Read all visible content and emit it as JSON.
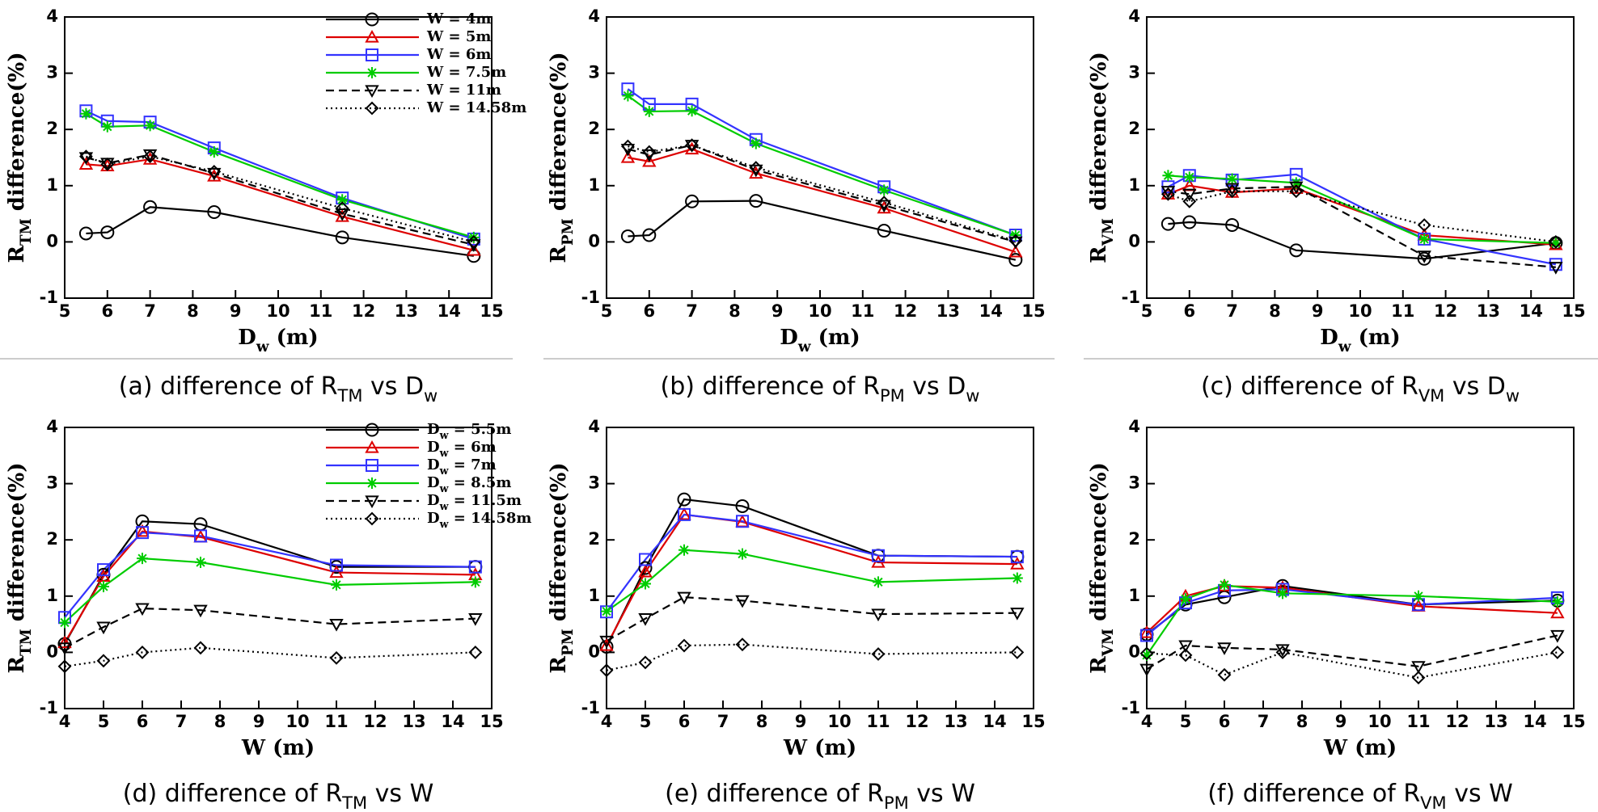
{
  "chart_data": [
    {
      "type": "line",
      "caption": [
        "(a) difference of R",
        "TM",
        " vs D",
        "w"
      ],
      "xlabel": [
        "D",
        "w",
        " (m)"
      ],
      "ylabel": [
        "R",
        "TM",
        " difference(%)"
      ],
      "x": [
        5.5,
        6,
        7,
        8.5,
        11.5,
        14.58
      ],
      "xlim": [
        5,
        15
      ],
      "xticks": [
        5,
        6,
        7,
        8,
        9,
        10,
        11,
        12,
        13,
        14,
        15
      ],
      "ylim": [
        -1,
        4
      ],
      "yticks": [
        -1,
        0,
        1,
        2,
        3,
        4
      ],
      "legend": "upper right",
      "series": [
        {
          "name": "W = 4m",
          "color": "#000000",
          "marker": "circle",
          "dash": "solid",
          "values": [
            0.15,
            0.17,
            0.62,
            0.53,
            0.08,
            -0.25
          ]
        },
        {
          "name": "W = 5m",
          "color": "#dd0000",
          "marker": "triangle",
          "dash": "solid",
          "values": [
            1.38,
            1.35,
            1.47,
            1.17,
            0.45,
            -0.15
          ]
        },
        {
          "name": "W = 6m",
          "color": "#3333ff",
          "marker": "square",
          "dash": "solid",
          "values": [
            2.33,
            2.15,
            2.13,
            1.67,
            0.78,
            0.05
          ]
        },
        {
          "name": "W = 7.5m",
          "color": "#00cc00",
          "marker": "asterisk",
          "dash": "solid",
          "values": [
            2.28,
            2.05,
            2.07,
            1.6,
            0.75,
            0.08
          ]
        },
        {
          "name": "W = 11m",
          "color": "#000000",
          "marker": "down-triangle",
          "dash": "dashed",
          "values": [
            1.5,
            1.4,
            1.55,
            1.22,
            0.5,
            -0.05
          ]
        },
        {
          "name": "W = 14.58m",
          "color": "#000000",
          "marker": "diamond",
          "dash": "dotted",
          "values": [
            1.52,
            1.38,
            1.52,
            1.25,
            0.6,
            0.0
          ]
        }
      ]
    },
    {
      "type": "line",
      "caption": [
        "(b) difference of R",
        "PM",
        " vs D",
        "w"
      ],
      "xlabel": [
        "D",
        "w",
        " (m)"
      ],
      "ylabel": [
        "R",
        "PM",
        " difference(%)"
      ],
      "x": [
        5.5,
        6,
        7,
        8.5,
        11.5,
        14.58
      ],
      "xlim": [
        5,
        15
      ],
      "xticks": [
        5,
        6,
        7,
        8,
        9,
        10,
        11,
        12,
        13,
        14,
        15
      ],
      "ylim": [
        -1,
        4
      ],
      "yticks": [
        -1,
        0,
        1,
        2,
        3,
        4
      ],
      "series": [
        {
          "color": "#000000",
          "marker": "circle",
          "dash": "solid",
          "values": [
            0.1,
            0.12,
            0.72,
            0.73,
            0.2,
            -0.32
          ]
        },
        {
          "color": "#dd0000",
          "marker": "triangle",
          "dash": "solid",
          "values": [
            1.5,
            1.43,
            1.65,
            1.22,
            0.6,
            -0.18
          ]
        },
        {
          "color": "#3333ff",
          "marker": "square",
          "dash": "solid",
          "values": [
            2.72,
            2.45,
            2.45,
            1.82,
            0.98,
            0.12
          ]
        },
        {
          "color": "#00cc00",
          "marker": "asterisk",
          "dash": "solid",
          "values": [
            2.6,
            2.32,
            2.33,
            1.75,
            0.92,
            0.12
          ]
        },
        {
          "color": "#000000",
          "marker": "down-triangle",
          "dash": "dashed",
          "values": [
            1.65,
            1.55,
            1.72,
            1.28,
            0.65,
            0.0
          ]
        },
        {
          "color": "#000000",
          "marker": "diamond",
          "dash": "dotted",
          "values": [
            1.7,
            1.6,
            1.72,
            1.32,
            0.7,
            0.02
          ]
        }
      ]
    },
    {
      "type": "line",
      "caption": [
        "(c) difference of R",
        "VM",
        " vs D",
        "w"
      ],
      "xlabel": [
        "D",
        "w",
        " (m)"
      ],
      "ylabel": [
        "R",
        "VM",
        " difference(%)"
      ],
      "x": [
        5.5,
        6,
        7,
        8.5,
        11.5,
        14.58
      ],
      "xlim": [
        5,
        15
      ],
      "xticks": [
        5,
        6,
        7,
        8,
        9,
        10,
        11,
        12,
        13,
        14,
        15
      ],
      "ylim": [
        -1,
        4
      ],
      "yticks": [
        -1,
        0,
        1,
        2,
        3,
        4
      ],
      "series": [
        {
          "color": "#000000",
          "marker": "circle",
          "dash": "solid",
          "values": [
            0.32,
            0.35,
            0.3,
            -0.15,
            -0.3,
            -0.02
          ]
        },
        {
          "color": "#dd0000",
          "marker": "triangle",
          "dash": "solid",
          "values": [
            0.85,
            1.0,
            0.88,
            0.95,
            0.12,
            -0.05
          ]
        },
        {
          "color": "#3333ff",
          "marker": "square",
          "dash": "solid",
          "values": [
            0.98,
            1.18,
            1.1,
            1.2,
            0.05,
            -0.4
          ]
        },
        {
          "color": "#00cc00",
          "marker": "asterisk",
          "dash": "solid",
          "values": [
            1.18,
            1.15,
            1.12,
            1.05,
            0.05,
            -0.02
          ]
        },
        {
          "color": "#000000",
          "marker": "down-triangle",
          "dash": "dashed",
          "values": [
            0.9,
            0.85,
            0.95,
            0.98,
            -0.25,
            -0.45
          ]
        },
        {
          "color": "#000000",
          "marker": "diamond",
          "dash": "dotted",
          "values": [
            0.85,
            0.72,
            0.9,
            0.9,
            0.3,
            0.0
          ]
        }
      ]
    },
    {
      "type": "line",
      "caption": [
        "(d) difference of R",
        "TM",
        " vs W"
      ],
      "xlabel": "W (m)",
      "ylabel": [
        "R",
        "TM",
        " difference(%)"
      ],
      "x": [
        4,
        5,
        6,
        7.5,
        11,
        14.58
      ],
      "xlim": [
        4,
        15
      ],
      "xticks": [
        4,
        5,
        6,
        7,
        8,
        9,
        10,
        11,
        12,
        13,
        14,
        15
      ],
      "ylim": [
        -1,
        4
      ],
      "yticks": [
        -1,
        0,
        1,
        2,
        3,
        4
      ],
      "legend": "upper right",
      "series": [
        {
          "name": [
            "D",
            "w",
            " = 5.5m"
          ],
          "color": "#000000",
          "marker": "circle",
          "dash": "solid",
          "values": [
            0.15,
            1.38,
            2.33,
            2.28,
            1.52,
            1.52
          ]
        },
        {
          "name": [
            "D",
            "w",
            " = 6m"
          ],
          "color": "#dd0000",
          "marker": "triangle",
          "dash": "solid",
          "values": [
            0.17,
            1.35,
            2.15,
            2.05,
            1.42,
            1.38
          ]
        },
        {
          "name": [
            "D",
            "w",
            " = 7m"
          ],
          "color": "#3333ff",
          "marker": "square",
          "dash": "solid",
          "values": [
            0.62,
            1.47,
            2.13,
            2.07,
            1.55,
            1.52
          ]
        },
        {
          "name": [
            "D",
            "w",
            " = 8.5m"
          ],
          "color": "#00cc00",
          "marker": "asterisk",
          "dash": "solid",
          "values": [
            0.53,
            1.17,
            1.67,
            1.6,
            1.2,
            1.25
          ]
        },
        {
          "name": [
            "D",
            "w",
            " = 11.5m"
          ],
          "color": "#000000",
          "marker": "down-triangle",
          "dash": "dashed",
          "values": [
            0.08,
            0.45,
            0.78,
            0.75,
            0.5,
            0.6
          ]
        },
        {
          "name": [
            "D",
            "w",
            " = 14.58m"
          ],
          "color": "#000000",
          "marker": "diamond",
          "dash": "dotted",
          "values": [
            -0.25,
            -0.15,
            0.0,
            0.08,
            -0.1,
            0.0
          ]
        }
      ]
    },
    {
      "type": "line",
      "caption": [
        "(e) difference of R",
        "PM",
        " vs W"
      ],
      "xlabel": "W (m)",
      "ylabel": [
        "R",
        "PM",
        " difference(%)"
      ],
      "x": [
        4,
        5,
        6,
        7.5,
        11,
        14.58
      ],
      "xlim": [
        4,
        15
      ],
      "xticks": [
        4,
        5,
        6,
        7,
        8,
        9,
        10,
        11,
        12,
        13,
        14,
        15
      ],
      "ylim": [
        -1,
        4
      ],
      "yticks": [
        -1,
        0,
        1,
        2,
        3,
        4
      ],
      "series": [
        {
          "color": "#000000",
          "marker": "circle",
          "dash": "solid",
          "values": [
            0.1,
            1.5,
            2.72,
            2.6,
            1.72,
            1.7
          ]
        },
        {
          "color": "#dd0000",
          "marker": "triangle",
          "dash": "solid",
          "values": [
            0.12,
            1.43,
            2.45,
            2.32,
            1.6,
            1.57
          ]
        },
        {
          "color": "#3333ff",
          "marker": "square",
          "dash": "solid",
          "values": [
            0.72,
            1.65,
            2.45,
            2.33,
            1.72,
            1.7
          ]
        },
        {
          "color": "#00cc00",
          "marker": "asterisk",
          "dash": "solid",
          "values": [
            0.73,
            1.22,
            1.82,
            1.75,
            1.25,
            1.32
          ]
        },
        {
          "color": "#000000",
          "marker": "down-triangle",
          "dash": "dashed",
          "values": [
            0.2,
            0.6,
            0.98,
            0.92,
            0.68,
            0.7
          ]
        },
        {
          "color": "#000000",
          "marker": "diamond",
          "dash": "dotted",
          "values": [
            -0.32,
            -0.18,
            0.12,
            0.14,
            -0.03,
            0.0
          ]
        }
      ]
    },
    {
      "type": "line",
      "caption": [
        "(f) difference of R",
        "VM",
        " vs W"
      ],
      "xlabel": "W (m)",
      "ylabel": [
        "R",
        "VM",
        " difference(%)"
      ],
      "x": [
        4,
        5,
        6,
        7.5,
        11,
        14.58
      ],
      "xlim": [
        4,
        15
      ],
      "xticks": [
        4,
        5,
        6,
        7,
        8,
        9,
        10,
        11,
        12,
        13,
        14,
        15
      ],
      "ylim": [
        -1,
        4
      ],
      "yticks": [
        -1,
        0,
        1,
        2,
        3,
        4
      ],
      "series": [
        {
          "color": "#000000",
          "marker": "circle",
          "dash": "solid",
          "values": [
            0.32,
            0.85,
            0.98,
            1.18,
            0.85,
            0.92
          ]
        },
        {
          "color": "#dd0000",
          "marker": "triangle",
          "dash": "solid",
          "values": [
            0.35,
            1.0,
            1.18,
            1.15,
            0.82,
            0.7
          ]
        },
        {
          "color": "#3333ff",
          "marker": "square",
          "dash": "solid",
          "values": [
            0.3,
            0.88,
            1.1,
            1.12,
            0.85,
            0.97
          ]
        },
        {
          "color": "#00cc00",
          "marker": "asterisk",
          "dash": "solid",
          "values": [
            -0.05,
            0.95,
            1.2,
            1.05,
            1.0,
            0.9
          ]
        },
        {
          "color": "#000000",
          "marker": "down-triangle",
          "dash": "dashed",
          "values": [
            -0.3,
            0.12,
            0.08,
            0.05,
            -0.25,
            0.3
          ]
        },
        {
          "color": "#000000",
          "marker": "diamond",
          "dash": "dotted",
          "values": [
            -0.02,
            -0.05,
            -0.4,
            0.0,
            -0.45,
            0.0
          ]
        }
      ]
    }
  ]
}
